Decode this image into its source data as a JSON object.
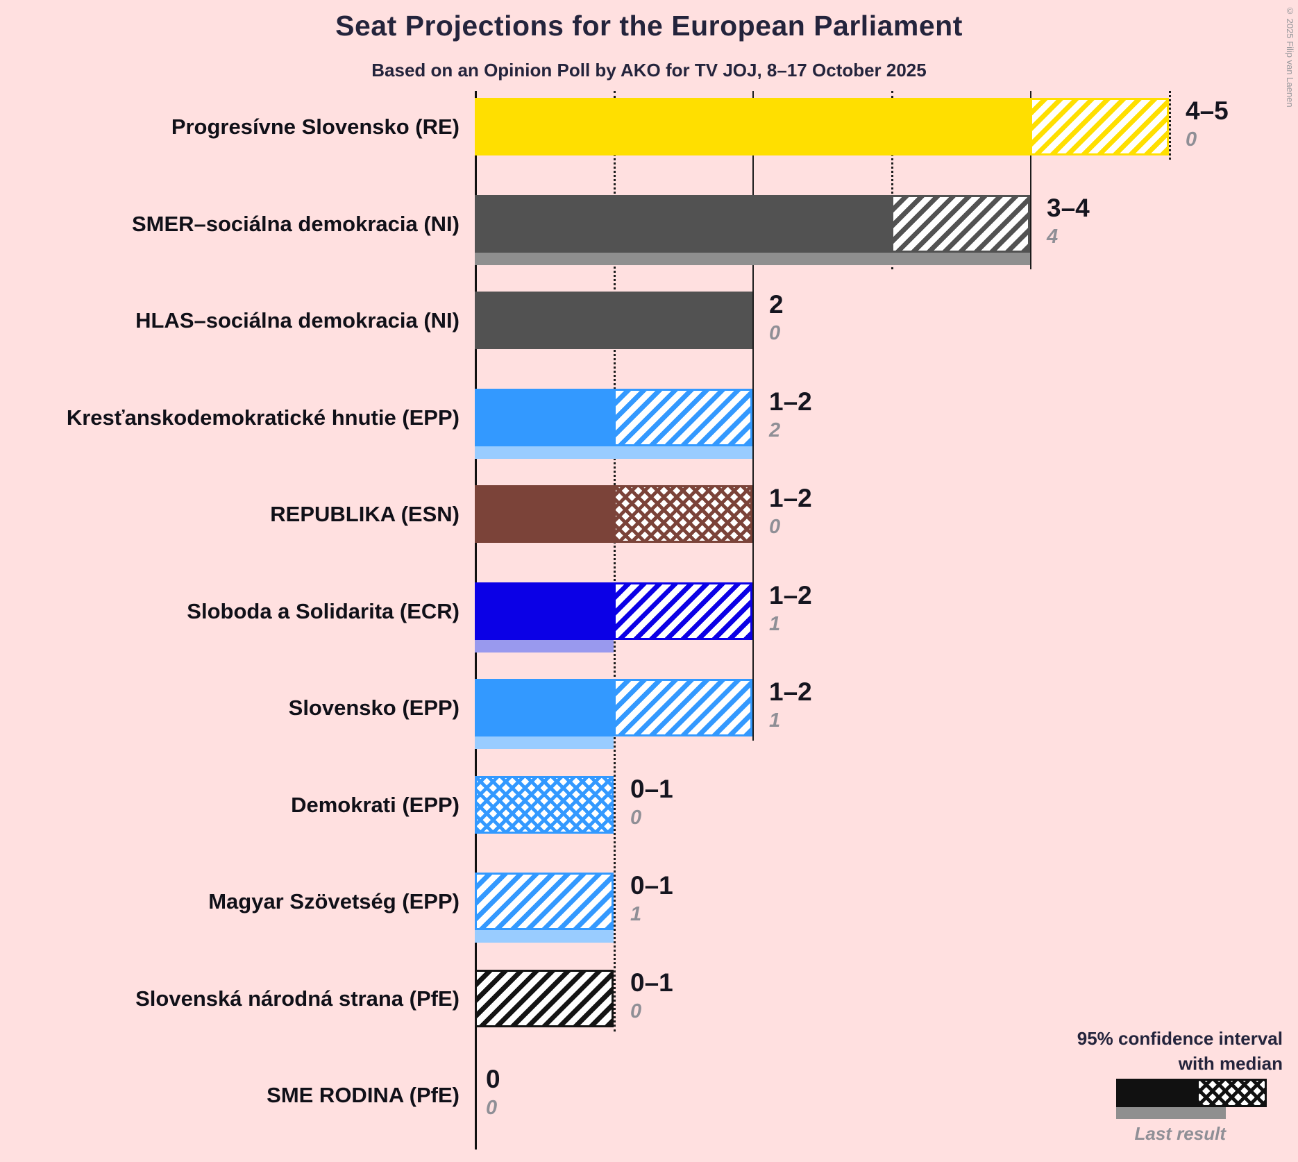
{
  "title": "Seat Projections for the European Parliament",
  "subtitle": "Based on an Opinion Poll by AKO for TV JOJ, 8–17 October 2025",
  "copyright": "© 2025 Filip van Laenen",
  "legend": {
    "ci_line1": "95% confidence interval",
    "ci_line2": "with median",
    "last_result": "Last result"
  },
  "chart_data": {
    "type": "bar",
    "orientation": "horizontal",
    "unit": "seats",
    "title": "Seat Projections for the European Parliament",
    "x_axis": {
      "min": 0,
      "max": 5,
      "ticks": [
        0,
        1,
        2,
        3,
        4,
        5
      ]
    },
    "background_color": "#FFE0E0",
    "legend_note": "95% confidence interval with median; thin underbar = last result",
    "parties": [
      {
        "label": "Progresívne Slovensko (RE)",
        "low": 4,
        "high": 5,
        "value_label": "4–5",
        "last_result": 0,
        "last_label": "0",
        "color": "#FFDF00",
        "last_color": "#FFF0A0",
        "hatch": "diagonal"
      },
      {
        "label": "SMER–sociálna demokracia (NI)",
        "low": 3,
        "high": 4,
        "value_label": "3–4",
        "last_result": 4,
        "last_label": "4",
        "color": "#525252",
        "last_color": "#8F8F8F",
        "hatch": "diagonal"
      },
      {
        "label": "HLAS–sociálna demokracia (NI)",
        "low": 2,
        "high": 2,
        "value_label": "2",
        "last_result": 0,
        "last_label": "0",
        "color": "#525252",
        "last_color": "#8F8F8F",
        "hatch": "none"
      },
      {
        "label": "Kresťanskodemokratické hnutie (EPP)",
        "low": 1,
        "high": 2,
        "value_label": "1–2",
        "last_result": 2,
        "last_label": "2",
        "color": "#3399FF",
        "last_color": "#99CCFF",
        "hatch": "diagonal"
      },
      {
        "label": "REPUBLIKA (ESN)",
        "low": 1,
        "high": 2,
        "value_label": "1–2",
        "last_result": 0,
        "last_label": "0",
        "color": "#7B4339",
        "last_color": "#C9A79E",
        "hatch": "cross"
      },
      {
        "label": "Sloboda a Solidarita (ECR)",
        "low": 1,
        "high": 2,
        "value_label": "1–2",
        "last_result": 1,
        "last_label": "1",
        "color": "#0B00E6",
        "last_color": "#9999EE",
        "hatch": "diagonal"
      },
      {
        "label": "Slovensko (EPP)",
        "low": 1,
        "high": 2,
        "value_label": "1–2",
        "last_result": 1,
        "last_label": "1",
        "color": "#3399FF",
        "last_color": "#99CCFF",
        "hatch": "diagonal"
      },
      {
        "label": "Demokrati (EPP)",
        "low": 0,
        "high": 1,
        "value_label": "0–1",
        "last_result": 0,
        "last_label": "0",
        "color": "#3399FF",
        "last_color": "#99CCFF",
        "hatch": "cross"
      },
      {
        "label": "Magyar Szövetség (EPP)",
        "low": 0,
        "high": 1,
        "value_label": "0–1",
        "last_result": 1,
        "last_label": "1",
        "color": "#3399FF",
        "last_color": "#99CCFF",
        "hatch": "diagonal"
      },
      {
        "label": "Slovenská národná strana (PfE)",
        "low": 0,
        "high": 1,
        "value_label": "0–1",
        "last_result": 0,
        "last_label": "0",
        "color": "#141414",
        "last_color": "#8F8F8F",
        "hatch": "diagonal"
      },
      {
        "label": "SME RODINA (PfE)",
        "low": 0,
        "high": 0,
        "value_label": "0",
        "last_result": 0,
        "last_label": "0",
        "color": "#141414",
        "last_color": "#8F8F8F",
        "hatch": "none"
      }
    ]
  }
}
